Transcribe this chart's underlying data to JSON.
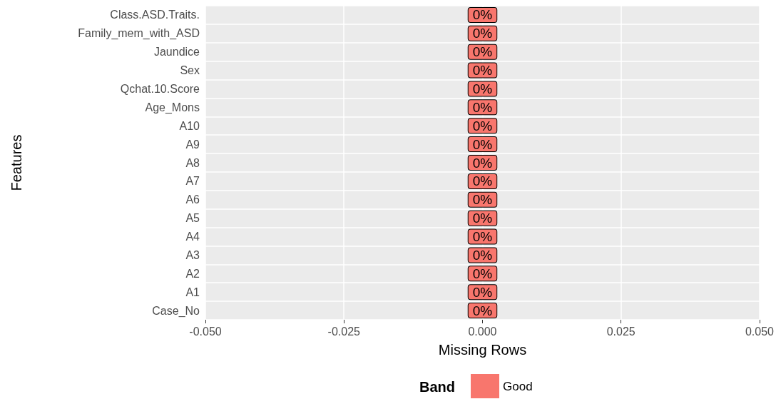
{
  "chart_data": {
    "type": "bar",
    "orientation": "horizontal",
    "xlabel": "Missing Rows",
    "ylabel": "Features",
    "legend_title": "Band",
    "legend": "bottom",
    "grid": true,
    "categories": [
      "Class.ASD.Traits.",
      "Family_mem_with_ASD",
      "Jaundice",
      "Sex",
      "Qchat.10.Score",
      "Age_Mons",
      "A10",
      "A9",
      "A8",
      "A7",
      "A6",
      "A5",
      "A4",
      "A3",
      "A2",
      "A1",
      "Case_No"
    ],
    "series": [
      {
        "name": "Good",
        "color": "#f8766d",
        "values": [
          0,
          0,
          0,
          0,
          0,
          0,
          0,
          0,
          0,
          0,
          0,
          0,
          0,
          0,
          0,
          0,
          0
        ],
        "value_labels": [
          "0%",
          "0%",
          "0%",
          "0%",
          "0%",
          "0%",
          "0%",
          "0%",
          "0%",
          "0%",
          "0%",
          "0%",
          "0%",
          "0%",
          "0%",
          "0%",
          "0%"
        ]
      }
    ],
    "xlim": [
      -0.05,
      0.05
    ],
    "xticks": [
      {
        "value": -0.05,
        "label": "-0.050"
      },
      {
        "value": -0.025,
        "label": "-0.025"
      },
      {
        "value": 0,
        "label": "0.000"
      },
      {
        "value": 0.025,
        "label": "0.025"
      },
      {
        "value": 0.05,
        "label": "0.050"
      }
    ]
  }
}
